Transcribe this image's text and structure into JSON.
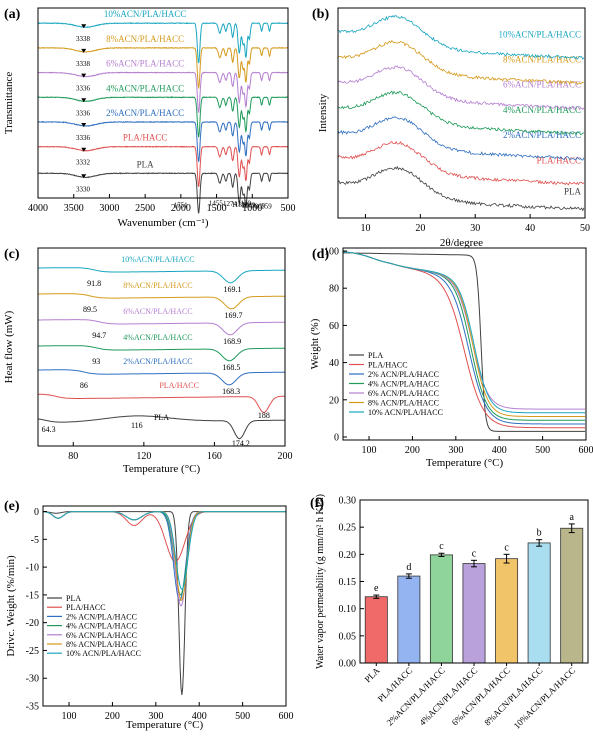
{
  "figure": {
    "panels": [
      "(a)",
      "(b)",
      "(c)",
      "(d)",
      "(e)",
      "(f)"
    ]
  },
  "colors": {
    "PLA": "#404040",
    "PLA/HACC": "#e05050",
    "2%": "#2f6fc0",
    "4%": "#1f9a5a",
    "6%": "#b57fd0",
    "8%": "#d49a1c",
    "10%": "#19a6c0"
  },
  "chart_data": [
    {
      "panel": "(a)",
      "type": "line",
      "xlabel": "Wavenumber (cm⁻¹)",
      "ylabel": "Transmittance",
      "xlim": [
        4000,
        500
      ],
      "x_reversed": true,
      "xticks": [
        4000,
        3500,
        3000,
        2500,
        2000,
        1500,
        1000,
        500
      ],
      "yticks": [],
      "series": [
        {
          "name": "PLA",
          "color_key": "PLA",
          "peak_label": "3330",
          "baseline": 0.13
        },
        {
          "name": "PLA/HACC",
          "color_key": "PLA/HACC",
          "peak_label": "3332",
          "baseline": 0.27
        },
        {
          "name": "2%ACN/PLA/HACC",
          "color_key": "2%",
          "peak_label": "3336",
          "baseline": 0.4
        },
        {
          "name": "4%ACN/PLA/HACC",
          "color_key": "4%",
          "peak_label": "3336",
          "baseline": 0.53
        },
        {
          "name": "6%ACN/PLA/HACC",
          "color_key": "6%",
          "peak_label": "3336",
          "baseline": 0.66
        },
        {
          "name": "8%ACN/PLA/HACC",
          "color_key": "8%",
          "peak_label": "3338",
          "baseline": 0.79
        },
        {
          "name": "10%ACN/PLA/HACC",
          "color_key": "10%",
          "peak_label": "3338",
          "baseline": 0.92
        }
      ],
      "annotations": [
        "1751",
        "1455",
        "1274",
        "1182",
        "1130",
        "1089",
        "1041",
        "869",
        "759"
      ]
    },
    {
      "panel": "(b)",
      "type": "line",
      "xlabel": "2θ/degree",
      "ylabel": "Intensity",
      "xlim": [
        5,
        50
      ],
      "xticks": [
        10,
        20,
        30,
        40,
        50
      ],
      "yticks": [],
      "series": [
        {
          "name": "PLA",
          "color_key": "PLA",
          "baseline": 0.15
        },
        {
          "name": "PLA/HACC",
          "color_key": "PLA/HACC",
          "baseline": 0.27
        },
        {
          "name": "2%ACN/PLA/HACC",
          "color_key": "2%",
          "baseline": 0.39
        },
        {
          "name": "4%ACN/PLA/HACC",
          "color_key": "4%",
          "baseline": 0.51
        },
        {
          "name": "6%ACN/PLA/HACC",
          "color_key": "6%",
          "baseline": 0.63
        },
        {
          "name": "8%ACN/PLA/HACC",
          "color_key": "8%",
          "baseline": 0.75
        },
        {
          "name": "10%ACN/PLA/HACC",
          "color_key": "10%",
          "baseline": 0.87
        }
      ]
    },
    {
      "panel": "(c)",
      "type": "line",
      "xlabel": "Temperature (°C)",
      "ylabel": "Heat flow (mW)",
      "xlim": [
        60,
        200
      ],
      "xticks": [
        80,
        120,
        160,
        200
      ],
      "yticks": [],
      "series": [
        {
          "name": "PLA",
          "color_key": "PLA",
          "labels": [
            "64.3",
            "116",
            "174.2"
          ]
        },
        {
          "name": "PLA/HACC",
          "color_key": "PLA/HACC",
          "labels": [
            "188"
          ]
        },
        {
          "name": "2%ACN/PLA/HACC",
          "color_key": "2%",
          "labels": [
            "86",
            "168.3"
          ]
        },
        {
          "name": "4%ACN/PLA/HACC",
          "color_key": "4%",
          "labels": [
            "93",
            "168.5"
          ]
        },
        {
          "name": "6%ACN/PLA/HACC",
          "color_key": "6%",
          "labels": [
            "94.7",
            "168.9"
          ]
        },
        {
          "name": "8%ACN/PLA/HACC",
          "color_key": "8%",
          "labels": [
            "89.5",
            "169.7"
          ]
        },
        {
          "name": "10%ACN/PLA/HACC",
          "color_key": "10%",
          "labels": [
            "91.8",
            "169.1"
          ]
        }
      ]
    },
    {
      "panel": "(d)",
      "type": "line",
      "xlabel": "Temperature (°C)",
      "ylabel": "Weight (%)",
      "xlim": [
        40,
        600
      ],
      "ylim": [
        0,
        100
      ],
      "xticks": [
        100,
        200,
        300,
        400,
        500,
        600
      ],
      "yticks": [
        0,
        20,
        40,
        60,
        80,
        100
      ],
      "legend": "lower-left",
      "series": [
        {
          "name": "PLA",
          "color_key": "PLA",
          "onset": 340,
          "mid": 358,
          "width": 7,
          "residue": 3
        },
        {
          "name": "PLA/HACC",
          "color_key": "PLA/HACC",
          "onset": 250,
          "mid": 320,
          "width": 22,
          "residue": 5
        },
        {
          "name": "2% ACN/PLA/HACC",
          "color_key": "2%",
          "onset": 250,
          "mid": 330,
          "width": 20,
          "residue": 7
        },
        {
          "name": "4% ACN/PLA/HACC",
          "color_key": "4%",
          "onset": 250,
          "mid": 335,
          "width": 18,
          "residue": 9
        },
        {
          "name": "6% ACN/PLA/HACC",
          "color_key": "6%",
          "onset": 250,
          "mid": 338,
          "width": 18,
          "residue": 15
        },
        {
          "name": "8% ACN/PLA/HACC",
          "color_key": "8%",
          "onset": 250,
          "mid": 340,
          "width": 17,
          "residue": 11
        },
        {
          "name": "10% ACN/PLA/HACC",
          "color_key": "10%",
          "onset": 250,
          "mid": 342,
          "width": 17,
          "residue": 13
        }
      ]
    },
    {
      "panel": "(e)",
      "type": "line",
      "xlabel": "Temperature (°C)",
      "ylabel": "Drivc. Weight (%/min)",
      "xlim": [
        40,
        600
      ],
      "ylim": [
        -35,
        1
      ],
      "xticks": [
        100,
        200,
        300,
        400,
        500,
        600
      ],
      "yticks": [
        0,
        -5,
        -10,
        -15,
        -20,
        -25,
        -30,
        -35
      ],
      "legend": "lower-left",
      "series": [
        {
          "name": "PLA",
          "color_key": "PLA",
          "peak_x": 360,
          "peak_y": -33,
          "sigma": 7
        },
        {
          "name": "PLA/HACC",
          "color_key": "PLA/HACC",
          "peak_x": 345,
          "peak_y": -9,
          "sigma": 22
        },
        {
          "name": "2% ACN/PLA/HACC",
          "color_key": "2%",
          "peak_x": 355,
          "peak_y": -16,
          "sigma": 14
        },
        {
          "name": "4% ACN/PLA/HACC",
          "color_key": "4%",
          "peak_x": 357,
          "peak_y": -15,
          "sigma": 14
        },
        {
          "name": "6% ACN/PLA/HACC",
          "color_key": "6%",
          "peak_x": 358,
          "peak_y": -17,
          "sigma": 13
        },
        {
          "name": "8% ACN/PLA/HACC",
          "color_key": "8%",
          "peak_x": 359,
          "peak_y": -16,
          "sigma": 13
        },
        {
          "name": "10% ACN/PLA/HACC",
          "color_key": "10%",
          "peak_x": 360,
          "peak_y": -14,
          "sigma": 14
        }
      ]
    },
    {
      "panel": "(f)",
      "type": "bar",
      "ylabel": "Water vapor permeability (g mm/m² h KPa)",
      "ylim": [
        0,
        0.3
      ],
      "yticks": [
        0.0,
        0.05,
        0.1,
        0.15,
        0.2,
        0.25,
        0.3
      ],
      "categories": [
        "PLA",
        "PLA/HACC",
        "2%ACN/PLA/HACC",
        "4%ACN/PLA/HACC",
        "6%ACN/PLA/HACC",
        "8%ACN/PLA/HACC",
        "10%ACN/PLA/HACC"
      ],
      "values": [
        0.122,
        0.16,
        0.199,
        0.183,
        0.192,
        0.221,
        0.248
      ],
      "errors": [
        0.003,
        0.004,
        0.003,
        0.006,
        0.008,
        0.006,
        0.008
      ],
      "letters": [
        "e",
        "d",
        "c",
        "c",
        "c",
        "b",
        "a"
      ],
      "bar_colors": [
        "#f06a6a",
        "#93b4f0",
        "#8fd49b",
        "#b9a2dc",
        "#f2c46a",
        "#a9def0",
        "#b8b68a"
      ]
    }
  ]
}
